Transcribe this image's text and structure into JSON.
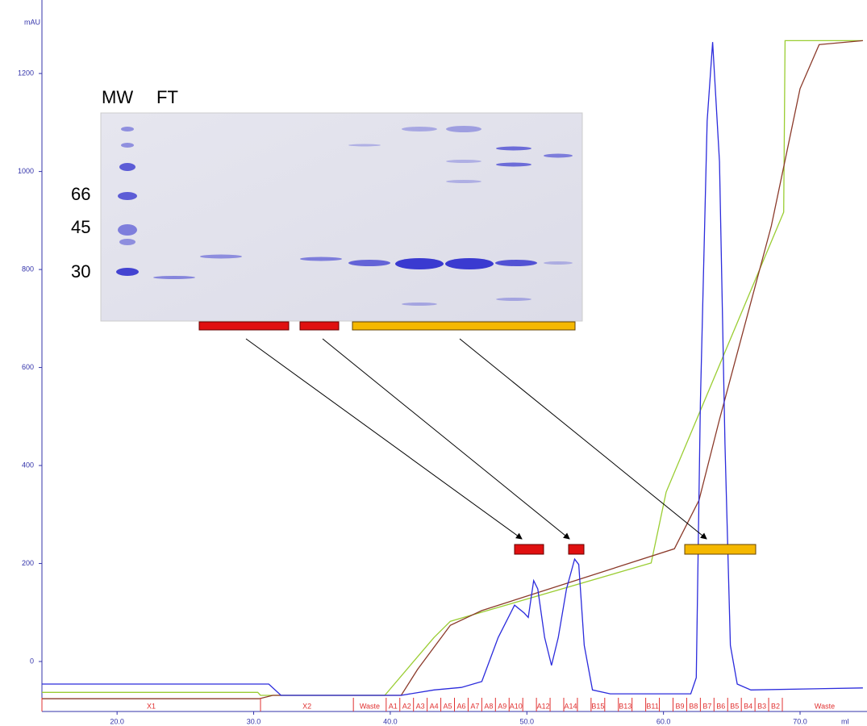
{
  "chart_data": {
    "type": "line",
    "y_label": "mAU",
    "x_label": "ml",
    "xlim": [
      14.5,
      74.9
    ],
    "ylim": [
      -102,
      1350
    ],
    "xticks": [
      {
        "value": 20,
        "label": "20.0"
      },
      {
        "value": 30,
        "label": "30.0"
      },
      {
        "value": 40,
        "label": "40.0"
      },
      {
        "value": 50,
        "label": "50.0"
      },
      {
        "value": 60,
        "label": "60.0"
      },
      {
        "value": 70,
        "label": "70.0"
      }
    ],
    "yticks": [
      0,
      200,
      400,
      600,
      800,
      1000,
      1200
    ],
    "series": [
      {
        "color": "#2b2bdc",
        "x": [
          14.5,
          31.1,
          32.0,
          40.8,
          43.2,
          45.2,
          46.7,
          47.9,
          49.1,
          49.8,
          50.1,
          50.5,
          50.8,
          51.3,
          51.8,
          52.3,
          52.9,
          53.5,
          53.8,
          54.2,
          54.8,
          56.1,
          62.0,
          62.4,
          62.7,
          63.2,
          63.6,
          64.1,
          64.5,
          64.9,
          65.4,
          66.4,
          74.6
        ],
        "values": [
          -46,
          -46,
          -69,
          -69,
          -58,
          -53,
          -41,
          49,
          115,
          99,
          90,
          165,
          148,
          49,
          -8,
          49,
          148,
          209,
          198,
          33,
          -58,
          -66,
          -66,
          -33,
          527,
          1103,
          1264,
          1020,
          444,
          33,
          -46,
          -58,
          -54
        ]
      },
      {
        "color": "#8b3a2a",
        "x": [
          14.5,
          30.4,
          31.4,
          40.8,
          42.0,
          44.4,
          46.7,
          60.8,
          62.6,
          64.1,
          67.9,
          70.0,
          71.4,
          74.6
        ],
        "values": [
          -76,
          -76,
          -69,
          -69,
          -16,
          74,
          104,
          230,
          329,
          494,
          889,
          1169,
          1259,
          1267
        ]
      },
      {
        "color": "#9acd32",
        "x": [
          14.5,
          30.3,
          30.5,
          39.6,
          43.2,
          44.4,
          59.1,
          60.2,
          68.8,
          68.9,
          74.6
        ],
        "values": [
          -63,
          -63,
          -69,
          -69,
          49,
          82,
          201,
          346,
          917,
          1267,
          1267
        ]
      }
    ],
    "fractions": {
      "labels": [
        "X1",
        "X2",
        "Waste",
        "A1",
        "A2",
        "A3",
        "A4",
        "A5",
        "A6",
        "A7",
        "A8",
        "A9",
        "A10",
        null,
        "A12",
        null,
        "A14",
        null,
        "B15",
        null,
        "B13",
        null,
        "B11",
        null,
        "B9",
        "B8",
        "B7",
        "B6",
        "B5",
        "B4",
        "B3",
        "B2",
        "Waste"
      ],
      "starts": [
        14.5,
        30.5,
        37.3,
        39.7,
        40.7,
        41.7,
        42.7,
        43.7,
        44.7,
        45.7,
        46.7,
        47.7,
        48.7,
        49.7,
        50.7,
        51.7,
        52.7,
        53.7,
        54.7,
        55.7,
        56.7,
        57.7,
        58.7,
        59.7,
        60.7,
        61.7,
        62.7,
        63.7,
        64.7,
        65.7,
        66.7,
        67.7,
        68.7
      ],
      "color": "#e03030"
    },
    "gel": {
      "lanes": [
        "MW",
        "FT"
      ],
      "markers": [
        "66",
        "45",
        "30"
      ]
    }
  }
}
